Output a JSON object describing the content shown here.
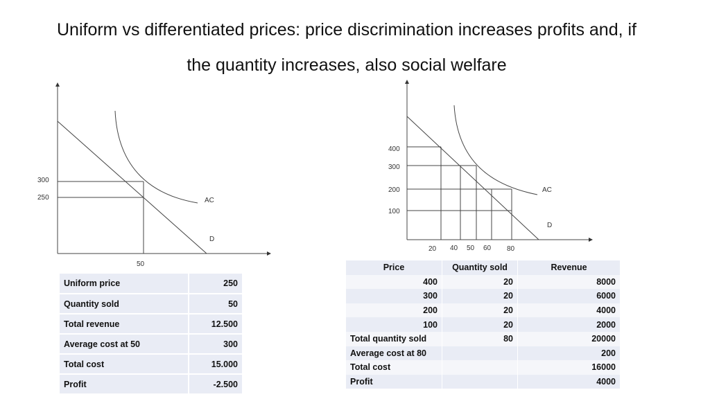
{
  "title_line1": "Uniform vs differentiated prices: price discrimination increases profits and, if",
  "title_line2": "the quantity increases, also social welfare",
  "left_diagram": {
    "y_labels": [
      "300",
      "250"
    ],
    "x_labels": [
      "50"
    ],
    "curve_labels": {
      "ac": "AC",
      "d": "D"
    }
  },
  "right_diagram": {
    "y_labels": [
      "400",
      "300",
      "200",
      "100"
    ],
    "x_labels": [
      "20",
      "40",
      "50",
      "60",
      "80"
    ],
    "curve_labels": {
      "ac": "AC",
      "d": "D"
    }
  },
  "left_table": [
    {
      "label": "Uniform price",
      "value": "250"
    },
    {
      "label": "Quantity sold",
      "value": "50"
    },
    {
      "label": "Total revenue",
      "value": "12.500"
    },
    {
      "label": "Average cost at 50",
      "value": "300"
    },
    {
      "label": "Total cost",
      "value": "15.000"
    },
    {
      "label": "Profit",
      "value": "-2.500"
    }
  ],
  "right_table": {
    "headers": [
      "Price",
      "Quantity sold",
      "Revenue"
    ],
    "rows": [
      [
        "400",
        "20",
        "8000"
      ],
      [
        "300",
        "20",
        "6000"
      ],
      [
        "200",
        "20",
        "4000"
      ],
      [
        "100",
        "20",
        "2000"
      ],
      [
        "Total quantity sold",
        "80",
        "20000"
      ],
      [
        "Average cost at 80",
        "",
        "200"
      ],
      [
        "Total cost",
        "",
        "16000"
      ],
      [
        "Profit",
        "",
        "4000"
      ]
    ]
  }
}
